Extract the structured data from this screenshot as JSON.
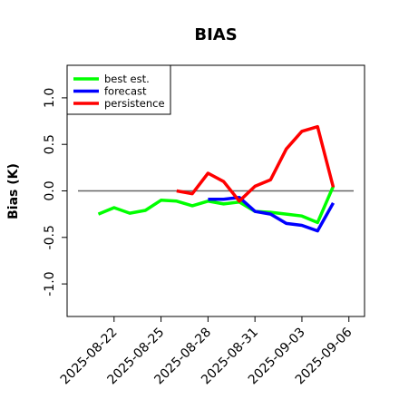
{
  "chart_data": {
    "type": "line",
    "title": "BIAS",
    "xlabel": "",
    "ylabel": "Bias (K)",
    "ylim": [
      -1.35,
      1.35
    ],
    "yticks": [
      -1.0,
      -0.5,
      0.0,
      0.5,
      1.0
    ],
    "ytick_labels": [
      "-1.0",
      "-0.5",
      "0.0",
      "0.5",
      "1.0"
    ],
    "xticks": [
      "2025-08-22",
      "2025-08-25",
      "2025-08-28",
      "2025-08-31",
      "2025-09-03",
      "2025-09-06"
    ],
    "xtick_colors": [
      "#000000",
      "#000000",
      "#2e8b2e",
      "#000000",
      "#000000",
      "#000000"
    ],
    "xlim": [
      "2025-08-19",
      "2025-09-07"
    ],
    "legend_position": "top-left",
    "reference_line": 0.0,
    "series": [
      {
        "name": "best est.",
        "color": "#00ff00",
        "x": [
          "2025-08-21",
          "2025-08-22",
          "2025-08-23",
          "2025-08-24",
          "2025-08-25",
          "2025-08-26",
          "2025-08-27",
          "2025-08-28",
          "2025-08-29",
          "2025-08-30",
          "2025-08-31",
          "2025-09-01",
          "2025-09-02",
          "2025-09-03",
          "2025-09-04",
          "2025-09-05"
        ],
        "y": [
          -0.25,
          -0.18,
          -0.24,
          -0.21,
          -0.1,
          -0.11,
          -0.16,
          -0.11,
          -0.14,
          -0.12,
          -0.22,
          -0.23,
          -0.25,
          -0.27,
          -0.34,
          0.05
        ]
      },
      {
        "name": "forecast",
        "color": "#0000ff",
        "x": [
          "2025-08-28",
          "2025-08-29",
          "2025-08-30",
          "2025-08-31",
          "2025-09-01",
          "2025-09-02",
          "2025-09-03",
          "2025-09-04",
          "2025-09-05"
        ],
        "y": [
          -0.09,
          -0.09,
          -0.07,
          -0.22,
          -0.25,
          -0.35,
          -0.37,
          -0.43,
          -0.13
        ]
      },
      {
        "name": "persistence",
        "color": "#ff0000",
        "x": [
          "2025-08-26",
          "2025-08-27",
          "2025-08-28",
          "2025-08-29",
          "2025-08-30",
          "2025-08-31",
          "2025-09-01",
          "2025-09-02",
          "2025-09-03",
          "2025-09-04",
          "2025-09-05"
        ],
        "y": [
          0.0,
          -0.03,
          0.19,
          0.1,
          -0.11,
          0.05,
          0.12,
          0.45,
          0.64,
          0.69,
          0.04
        ]
      }
    ]
  }
}
